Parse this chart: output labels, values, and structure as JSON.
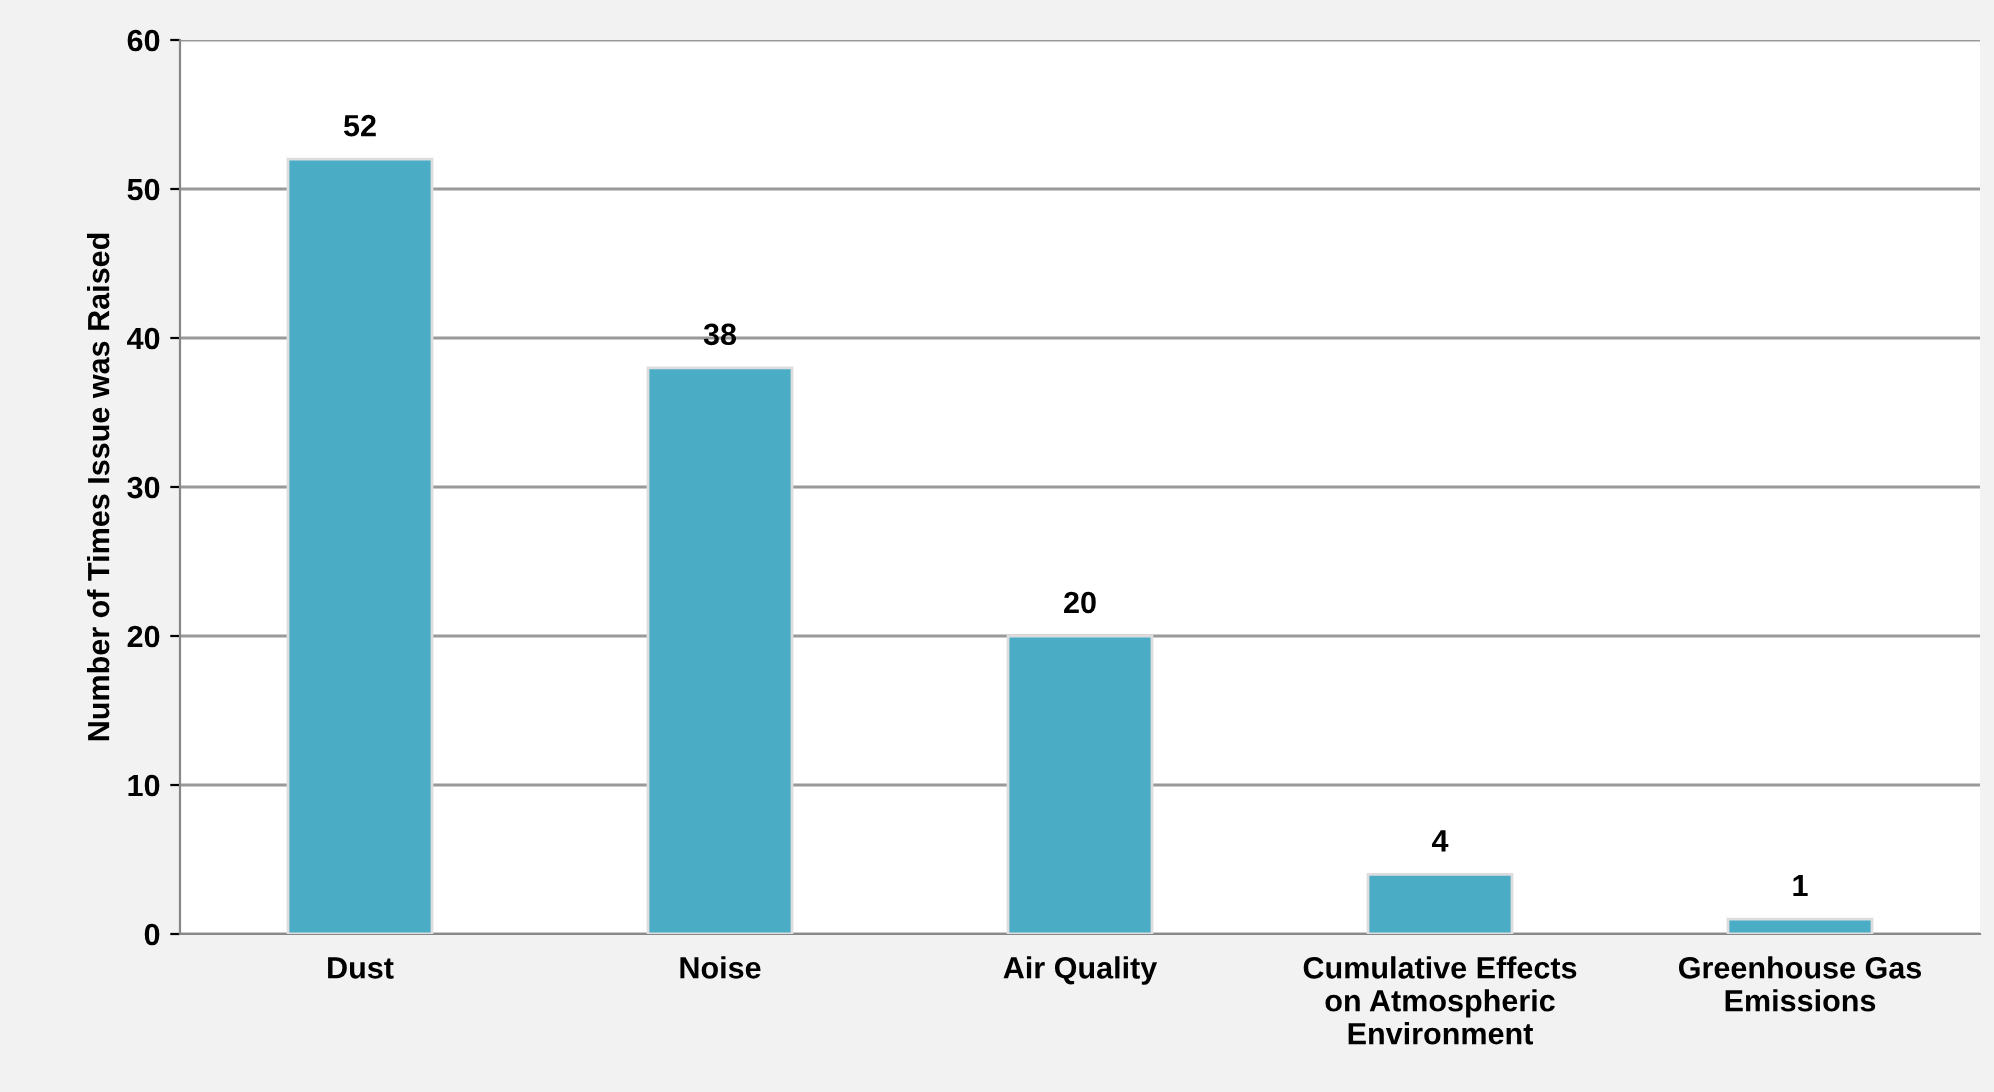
{
  "chart_data": {
    "type": "bar",
    "ylabel": "Number of Times Issue was Raised",
    "categories": [
      "Dust",
      "Noise",
      "Air Quality",
      "Cumulative Effects\non Atmospheric\nEnvironment",
      "Greenhouse Gas\nEmissions"
    ],
    "values": [
      52,
      38,
      20,
      4,
      1
    ],
    "color": "#4bacc6",
    "data_labels": true,
    "ylim": [
      0,
      60
    ],
    "yticks": [
      0,
      10,
      20,
      30,
      40,
      50,
      60
    ],
    "grid": "y"
  }
}
